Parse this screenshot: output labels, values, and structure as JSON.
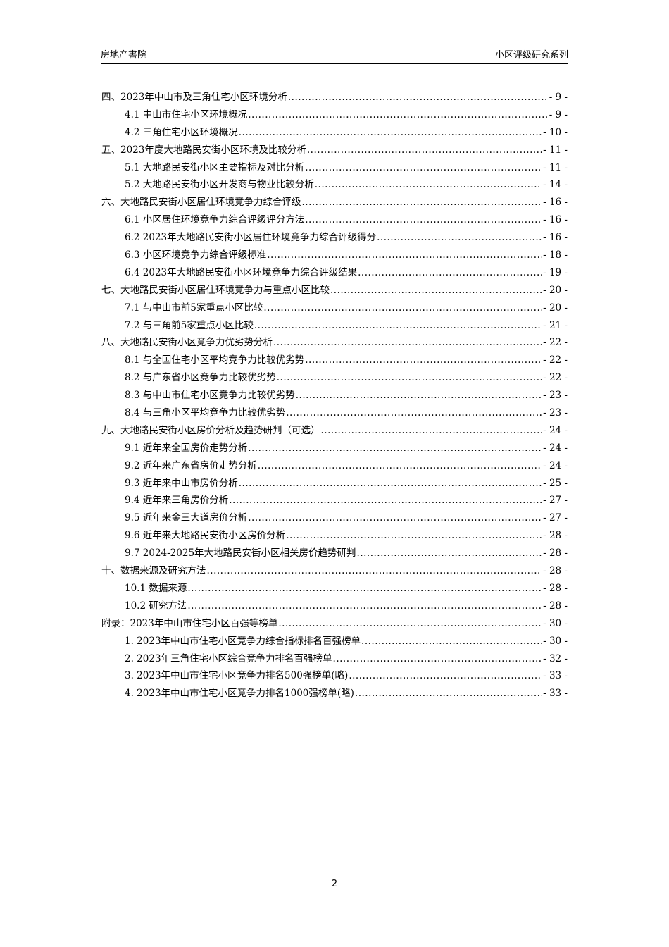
{
  "header": {
    "left": "房地产書院",
    "right": "小区评级研究系列"
  },
  "toc": [
    {
      "level": 1,
      "title": "四、2023年中山市及三角住宅小区环境分析",
      "page": "- 9 -"
    },
    {
      "level": 2,
      "title": "4.1 中山市住宅小区环境概况",
      "page": "- 9 -"
    },
    {
      "level": 2,
      "title": "4.2 三角住宅小区环境概况",
      "page": "- 10 -"
    },
    {
      "level": 1,
      "title": "五、2023年度大地路民安街小区环境及比较分析",
      "page": "- 11 -"
    },
    {
      "level": 2,
      "title": "5.1 大地路民安街小区主要指标及对比分析",
      "page": "- 11 -"
    },
    {
      "level": 2,
      "title": "5.2 大地路民安街小区开发商与物业比较分析",
      "page": "- 14 -"
    },
    {
      "level": 1,
      "title": "六、大地路民安街小区居住环境竞争力综合评级",
      "page": "- 16 -"
    },
    {
      "level": 2,
      "title": "6.1 小区居住环境竞争力综合评级评分方法",
      "page": "- 16 -"
    },
    {
      "level": 2,
      "title": "6.2 2023年大地路民安街小区居住环境竞争力综合评级得分",
      "page": "- 16 -"
    },
    {
      "level": 2,
      "title": "6.3 小区环境竞争力综合评级标准",
      "page": "- 18 -"
    },
    {
      "level": 2,
      "title": "6.4 2023年大地路民安街小区环境竞争力综合评级结果",
      "page": "- 19 -"
    },
    {
      "level": 1,
      "title": "七、大地路民安街小区居住环境竞争力与重点小区比较",
      "page": "- 20 -"
    },
    {
      "level": 2,
      "title": "7.1 与中山市前5家重点小区比较",
      "page": "- 20 -"
    },
    {
      "level": 2,
      "title": "7.2 与三角前5家重点小区比较",
      "page": "- 21 -"
    },
    {
      "level": 1,
      "title": "八、大地路民安街小区竞争力优劣势分析",
      "page": "- 22 -"
    },
    {
      "level": 2,
      "title": "8.1 与全国住宅小区平均竞争力比较优劣势",
      "page": "- 22 -"
    },
    {
      "level": 2,
      "title": "8.2 与广东省小区竞争力比较优劣势",
      "page": "- 22 -"
    },
    {
      "level": 2,
      "title": "8.3 与中山市住宅小区竞争力比较优劣势",
      "page": "- 23 -"
    },
    {
      "level": 2,
      "title": "8.4 与三角小区平均竞争力比较优劣势",
      "page": "- 23 -"
    },
    {
      "level": 1,
      "title": "九、大地路民安街小区房价分析及趋势研判（可选）",
      "page": "- 24 -"
    },
    {
      "level": 2,
      "title": "9.1 近年来全国房价走势分析",
      "page": "- 24 -"
    },
    {
      "level": 2,
      "title": "9.2 近年来广东省房价走势分析",
      "page": "- 24 -"
    },
    {
      "level": 2,
      "title": "9.3 近年来中山市房价分析",
      "page": "- 25 -"
    },
    {
      "level": 2,
      "title": "9.4 近年来三角房价分析",
      "page": "- 27 -"
    },
    {
      "level": 2,
      "title": "9.5 近年来金三大道房价分析",
      "page": "- 27 -"
    },
    {
      "level": 2,
      "title": "9.6 近年来大地路民安街小区房价分析",
      "page": "- 28 -"
    },
    {
      "level": 2,
      "title": "9.7 2024-2025年大地路民安街小区相关房价趋势研判",
      "page": "- 28 -"
    },
    {
      "level": 1,
      "title": "十、数据来源及研究方法",
      "page": "- 28 -"
    },
    {
      "level": 2,
      "title": "10.1 数据来源",
      "page": "- 28 -"
    },
    {
      "level": 2,
      "title": "10.2 研究方法",
      "page": "- 28 -"
    },
    {
      "level": 1,
      "title": "附录：2023年中山市住宅小区百强等榜单",
      "page": "- 30 -"
    },
    {
      "level": 2,
      "title": "1.  2023年中山市住宅小区竞争力综合指标排名百强榜单",
      "page": "- 30 -"
    },
    {
      "level": 2,
      "title": "2.  2023年三角住宅小区综合竞争力排名百强榜单",
      "page": "- 32 -"
    },
    {
      "level": 2,
      "title": "3.  2023年中山市住宅小区竞争力排名500强榜单(略)",
      "page": "- 33 -"
    },
    {
      "level": 2,
      "title": "4.  2023年中山市住宅小区竞争力排名1000强榜单(略)",
      "page": "- 33 -"
    }
  ],
  "footer": {
    "page_number": "2"
  }
}
